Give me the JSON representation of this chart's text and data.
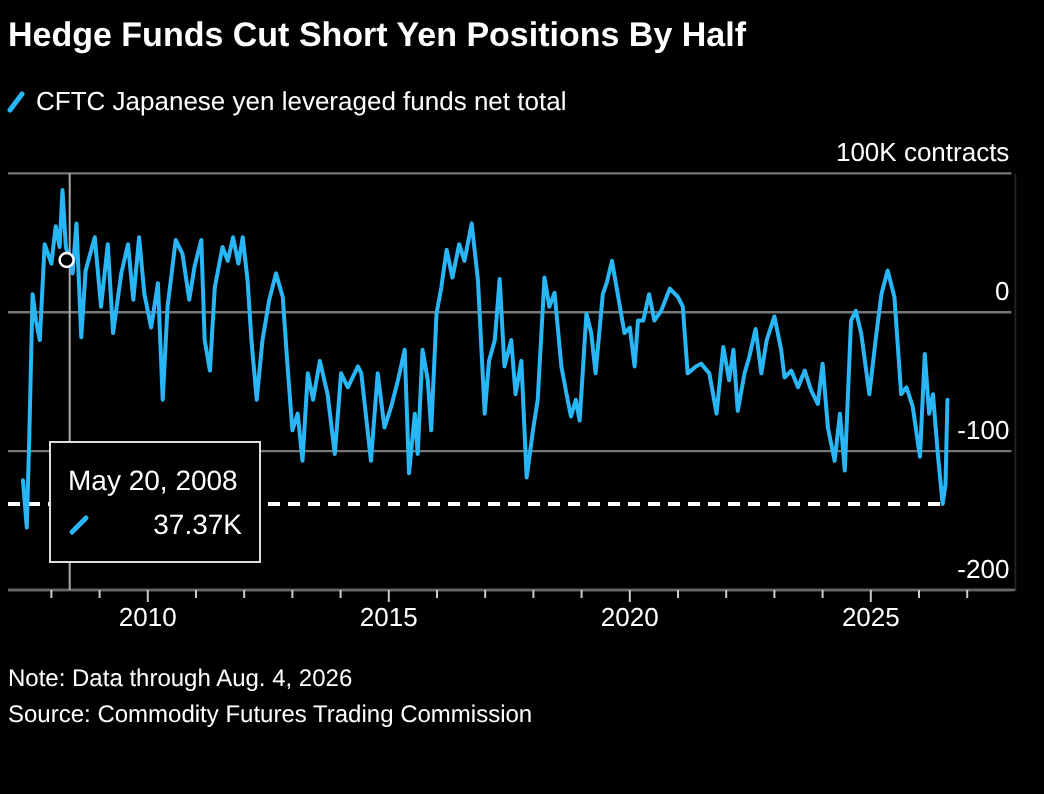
{
  "chart_data": {
    "type": "line",
    "title": "Hedge Funds Cut Short Yen Positions By Half",
    "x": [
      2007.41,
      2007.49,
      2007.54,
      2007.61,
      2007.68,
      2007.76,
      2007.86,
      2008.0,
      2008.09,
      2008.17,
      2008.23,
      2008.3,
      2008.38,
      2008.44,
      2008.52,
      2008.62,
      2008.71,
      2008.9,
      2009.03,
      2009.17,
      2009.28,
      2009.45,
      2009.59,
      2009.7,
      2009.82,
      2009.93,
      2010.07,
      2010.21,
      2010.31,
      2010.41,
      2010.58,
      2010.72,
      2010.86,
      2010.97,
      2011.11,
      2011.18,
      2011.29,
      2011.39,
      2011.55,
      2011.66,
      2011.77,
      2011.88,
      2011.97,
      2012.07,
      2012.15,
      2012.26,
      2012.38,
      2012.52,
      2012.66,
      2012.8,
      2012.9,
      2013.0,
      2013.11,
      2013.21,
      2013.32,
      2013.43,
      2013.57,
      2013.73,
      2013.88,
      2014.01,
      2014.15,
      2014.36,
      2014.43,
      2014.63,
      2014.77,
      2014.91,
      2015.05,
      2015.19,
      2015.33,
      2015.42,
      2015.54,
      2015.6,
      2015.7,
      2015.81,
      2015.88,
      2015.99,
      2016.09,
      2016.2,
      2016.32,
      2016.46,
      2016.57,
      2016.72,
      2016.85,
      2016.99,
      2017.08,
      2017.2,
      2017.3,
      2017.4,
      2017.54,
      2017.63,
      2017.75,
      2017.86,
      2018.0,
      2018.09,
      2018.23,
      2018.33,
      2018.44,
      2018.58,
      2018.71,
      2018.78,
      2018.88,
      2018.96,
      2019.1,
      2019.2,
      2019.29,
      2019.44,
      2019.52,
      2019.63,
      2019.75,
      2019.89,
      2020.0,
      2020.1,
      2020.17,
      2020.28,
      2020.4,
      2020.51,
      2020.65,
      2020.83,
      2021.0,
      2021.1,
      2021.2,
      2021.37,
      2021.48,
      2021.65,
      2021.8,
      2021.94,
      2022.06,
      2022.15,
      2022.24,
      2022.38,
      2022.48,
      2022.61,
      2022.73,
      2022.84,
      2023.0,
      2023.14,
      2023.21,
      2023.35,
      2023.49,
      2023.63,
      2023.76,
      2023.9,
      2024.0,
      2024.11,
      2024.25,
      2024.36,
      2024.46,
      2024.59,
      2024.69,
      2024.8,
      2024.97,
      2025.1,
      2025.22,
      2025.35,
      2025.49,
      2025.63,
      2025.74,
      2025.87,
      2026.02,
      2026.12,
      2026.21,
      2026.29,
      2026.39,
      2026.49,
      2026.55,
      2026.59
    ],
    "series": [
      {
        "name": "CFTC Japanese yen leveraged funds net total",
        "color": "#29b6f6",
        "values": [
          -121,
          -155,
          -92,
          13,
          -6,
          -20,
          49,
          35,
          62,
          47,
          88,
          47,
          37.37,
          28,
          64,
          -18,
          30,
          54,
          4,
          49,
          -15,
          28,
          49,
          9,
          54,
          13,
          -11,
          21,
          -63,
          4,
          52,
          42,
          9,
          33,
          52,
          -20,
          -42,
          18,
          47,
          37,
          54,
          35,
          54,
          23,
          -20,
          -63,
          -20,
          9,
          28,
          11,
          -39,
          -85,
          -73,
          -107,
          -44,
          -63,
          -35,
          -59,
          -102,
          -44,
          -54,
          -39,
          -44,
          -107,
          -44,
          -83,
          -68,
          -49,
          -27,
          -116,
          -73,
          -102,
          -27,
          -49,
          -85,
          -1,
          18,
          45,
          25,
          49,
          37,
          64,
          23,
          -73,
          -35,
          -20,
          24,
          -39,
          -20,
          -59,
          -35,
          -119,
          -83,
          -63,
          25,
          4,
          14,
          -39,
          -63,
          -75,
          -63,
          -78,
          -1,
          -15,
          -44,
          13,
          21,
          37,
          13,
          -15,
          -11,
          -39,
          -6,
          -6,
          13,
          -6,
          1,
          17,
          11,
          4,
          -44,
          -39,
          -37,
          -44,
          -73,
          -25,
          -49,
          -27,
          -71,
          -44,
          -32,
          -12,
          -44,
          -20,
          -3,
          -27,
          -47,
          -42,
          -54,
          -42,
          -56,
          -66,
          -37,
          -83,
          -107,
          -73,
          -114,
          -6,
          1,
          -15,
          -59,
          -20,
          13,
          30,
          11,
          -59,
          -54,
          -68,
          -104,
          -30,
          -73,
          -59,
          -102,
          -138,
          -124,
          -63
        ]
      }
    ],
    "xlim": [
      2007.1,
      2028.0
    ],
    "xticks": [
      {
        "value": 2008,
        "label": null
      },
      {
        "value": 2009,
        "label": null
      },
      2010,
      {
        "value": 2011,
        "label": null
      },
      {
        "value": 2012,
        "label": null
      },
      {
        "value": 2013,
        "label": null
      },
      {
        "value": 2014,
        "label": null
      },
      2015,
      {
        "value": 2016,
        "label": null
      },
      {
        "value": 2017,
        "label": null
      },
      {
        "value": 2018,
        "label": null
      },
      {
        "value": 2019,
        "label": null
      },
      2020,
      {
        "value": 2021,
        "label": null
      },
      {
        "value": 2022,
        "label": null
      },
      {
        "value": 2023,
        "label": null
      },
      {
        "value": 2024,
        "label": null
      },
      2025,
      {
        "value": 2026,
        "label": null
      },
      {
        "value": 2027,
        "label": null
      }
    ],
    "ylim": [
      -200,
      100
    ],
    "yticks": [
      -200,
      -100,
      0,
      {
        "value": 100,
        "label": null
      }
    ],
    "ylabel": "100K contracts",
    "grid": "y",
    "legend": "top left",
    "ref_lines": [
      {
        "axis": "y",
        "value": -138,
        "color": "#ffffff",
        "line_style": "dashed"
      },
      {
        "axis": "x",
        "value": 2008.38,
        "color": "#aaaaaa",
        "line_style": "solid"
      }
    ],
    "annotations": [
      "May 20, 2008",
      "37.37K",
      "Note: Data through Aug. 4, 2026",
      "Source: Commodity Futures Trading Commission"
    ]
  }
}
